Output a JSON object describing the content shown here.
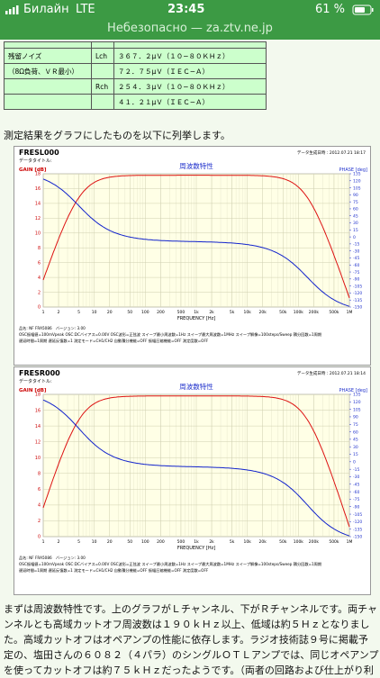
{
  "status_bar": {
    "carrier": "Билайн",
    "network": "LTE",
    "time": "23:45",
    "battery": "61 %"
  },
  "url_bar": {
    "text": "Небезопасно — za.ztv.ne.jp"
  },
  "table": {
    "rows": [
      {
        "label": "残留ノイズ",
        "channel": "Lch",
        "value": "３６７．２μＶ（１０−８０ＫＨｚ）"
      },
      {
        "label": "（8Ω負荷、ＶＲ最小）",
        "value": "７２．７５μＶ（ＩＥＣ−Ａ）"
      },
      {
        "channel": "Rch",
        "value": "２５４．３μＶ（１０−８０ＫＨｚ）"
      },
      {
        "value": "４１．２１μＶ（ＩＥＣ−Ａ）"
      }
    ]
  },
  "intro": "測定結果をグラフにしたものを以下に列挙します。",
  "charts": [
    {
      "file": "FRESL000",
      "data_title": "データタイトル:",
      "date": "データ生成日時：2012.07.21 18:17",
      "title": "周波数特性",
      "y_label": "GAIN [dB]",
      "y2_label": "PHASE [deg]",
      "x_label": "FREQUENCY [Hz]",
      "ylim": [
        0,
        18
      ],
      "yticks": [
        18,
        16,
        14,
        12,
        10,
        8,
        6,
        4,
        2,
        0
      ],
      "y2lim": [
        -150,
        135
      ],
      "y2ticks": [
        135,
        120,
        105,
        90,
        75,
        60,
        45,
        30,
        15,
        0,
        -15,
        -30,
        -45,
        -60,
        -75,
        -90,
        -105,
        -120,
        -135,
        -150
      ],
      "xlim": [
        1,
        1000000
      ],
      "xticks": [
        1,
        2,
        5,
        10,
        20,
        50,
        100,
        200,
        500,
        {
          "value": 1000,
          "label": "1k"
        },
        {
          "value": 2000,
          "label": "2k"
        },
        {
          "value": 5000,
          "label": "5k"
        },
        {
          "value": 10000,
          "label": "10k"
        },
        {
          "value": 20000,
          "label": "20k"
        },
        {
          "value": 50000,
          "label": "50k"
        },
        {
          "value": 100000,
          "label": "100k"
        },
        {
          "value": 200000,
          "label": "200k"
        },
        {
          "value": 500000,
          "label": "500k"
        },
        {
          "value": 1000000,
          "label": "1M"
        }
      ],
      "footer": [
        "品名: NF FRA5086　バージョン: 3.00",
        "OSC振幅値=100mVpeak OSC:DCバイアス=0.00V OSC波形=正弦波 スイープ最小周波数=1Hz スイープ最大周波数=1MHz スイープ解像=100steps/Sweep 積分回数=1周期",
        "遅延時間=1周期 遅延反復数=1 測定モード=CH1/CH2 自動積分機能=OFF 振幅圧縮機能=OFF 測定度数=OFF"
      ]
    },
    {
      "file": "FRESR000",
      "data_title": "データタイトル:",
      "date": "データ生成日時：2012.07.21 18:14",
      "title": "周波数特性",
      "y_label": "GAIN [dB]",
      "y2_label": "PHASE [deg]",
      "x_label": "FREQUENCY [Hz]",
      "ylim": [
        0,
        18
      ],
      "yticks": [
        18,
        16,
        14,
        12,
        10,
        8,
        6,
        4,
        2,
        0
      ],
      "y2lim": [
        -150,
        135
      ],
      "y2ticks": [
        135,
        120,
        105,
        90,
        75,
        60,
        45,
        30,
        15,
        0,
        -15,
        -30,
        -45,
        -60,
        -75,
        -90,
        -105,
        -120,
        -135,
        -150
      ],
      "xlim": [
        1,
        1000000
      ],
      "xticks": [
        1,
        2,
        5,
        10,
        20,
        50,
        100,
        200,
        500,
        {
          "value": 1000,
          "label": "1k"
        },
        {
          "value": 2000,
          "label": "2k"
        },
        {
          "value": 5000,
          "label": "5k"
        },
        {
          "value": 10000,
          "label": "10k"
        },
        {
          "value": 20000,
          "label": "20k"
        },
        {
          "value": 50000,
          "label": "50k"
        },
        {
          "value": 100000,
          "label": "100k"
        },
        {
          "value": 200000,
          "label": "200k"
        },
        {
          "value": 500000,
          "label": "500k"
        },
        {
          "value": 1000000,
          "label": "1M"
        }
      ],
      "footer": [
        "品名: NF FRA5086　バージョン: 3.00",
        "OSC振幅値=100mVpeak OSC:DCバイアス=0.00V OSC波形=正弦波 スイープ最小周波数=1Hz スイープ最大周波数=1MHz スイープ解像=100steps/Sweep 積分回数=1周期",
        "遅延時間=1周期 遅延反復数=1 測定モード=CH1/CH2 自動積分機能=OFF 振幅圧縮機能=OFF 測定度数=OFF"
      ]
    }
  ],
  "paragraph": [
    "まずは周波数特性です。上のグラフがＬチャンネル、下がＲチャンネルです。両チャ",
    "ンネルとも高域カットオフ周波数は１９０ｋＨｚ以上、低域は約５Ｈｚとなりまし",
    "た。高域カットオフはオペアンプの性能に依存します。ラジオ技術誌９号に掲載予",
    "定の、塩田さんの６０８２（４パラ）のシングルＯＴＬアンプでは、同じオペアンプ",
    "を使ってカットオフは約７５ｋＨｚだったようです。（両者の回路および仕上がり利"
  ]
}
